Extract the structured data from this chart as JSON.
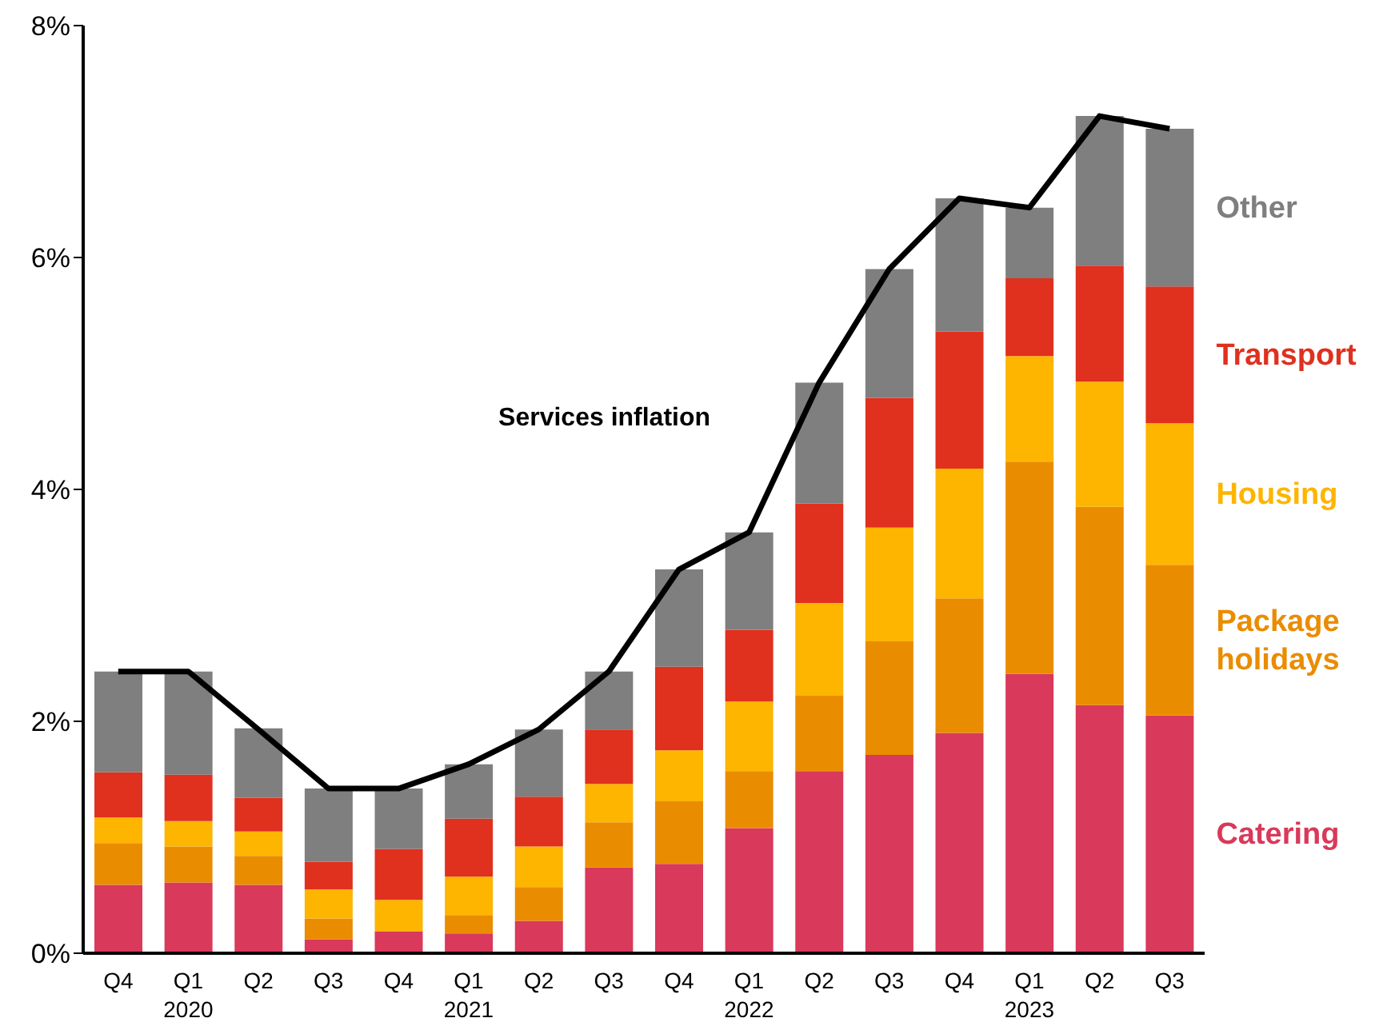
{
  "chart_data": {
    "type": "bar",
    "stacked": true,
    "categories": [
      "Q4",
      "Q1 2020",
      "Q2",
      "Q3",
      "Q4",
      "Q1 2021",
      "Q2",
      "Q3",
      "Q4",
      "Q1 2022",
      "Q2",
      "Q3",
      "Q4",
      "Q1 2023",
      "Q2",
      "Q3"
    ],
    "series": [
      {
        "name": "Catering",
        "color": "#d9395a",
        "values": [
          0.59,
          0.61,
          0.59,
          0.12,
          0.19,
          0.17,
          0.28,
          0.74,
          0.77,
          1.08,
          1.57,
          1.71,
          1.9,
          2.41,
          2.14,
          2.05
        ]
      },
      {
        "name": "Package holidays",
        "color": "#ea8c00",
        "values": [
          0.36,
          0.31,
          0.25,
          0.18,
          0,
          0.16,
          0.29,
          0.39,
          0.54,
          0.49,
          0.65,
          0.98,
          1.16,
          1.83,
          1.71,
          1.3
        ]
      },
      {
        "name": "Housing",
        "color": "#fdb500",
        "values": [
          0.22,
          0.22,
          0.21,
          0.25,
          0.27,
          0.33,
          0.35,
          0.33,
          0.44,
          0.6,
          0.8,
          0.98,
          1.12,
          0.91,
          1.08,
          1.22
        ]
      },
      {
        "name": "Transport",
        "color": "#e0301e",
        "values": [
          0.39,
          0.4,
          0.29,
          0.24,
          0.44,
          0.5,
          0.43,
          0.47,
          0.72,
          0.62,
          0.86,
          1.12,
          1.18,
          0.67,
          1.0,
          1.18
        ]
      },
      {
        "name": "Other",
        "color": "#7f7f7f",
        "values": [
          0.87,
          0.89,
          0.6,
          0.63,
          0.52,
          0.47,
          0.58,
          0.5,
          0.84,
          0.84,
          1.04,
          1.11,
          1.15,
          0.61,
          1.29,
          1.36
        ]
      },
      {
        "name": "Services inflation",
        "type": "line",
        "color": "#000000",
        "values": [
          2.43,
          2.43,
          1.93,
          1.42,
          1.42,
          1.63,
          1.93,
          2.43,
          3.31,
          3.63,
          4.92,
          5.9,
          6.51,
          6.43,
          7.22,
          7.11
        ]
      }
    ],
    "ylim": [
      0,
      8
    ],
    "yticks": [
      {
        "value": 0,
        "label": "0%"
      },
      {
        "value": 2,
        "label": "2%"
      },
      {
        "value": 4,
        "label": "4%"
      },
      {
        "value": 6,
        "label": "6%"
      },
      {
        "value": 8,
        "label": "8%"
      }
    ],
    "grid": false,
    "legend": "right",
    "marker": "none",
    "line_style": "solid"
  }
}
